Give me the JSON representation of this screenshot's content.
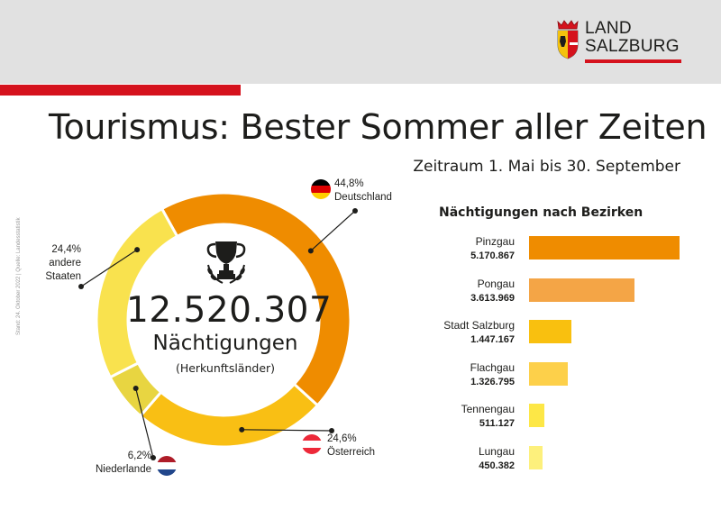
{
  "brand": {
    "line1": "LAND",
    "line2": "SALZBURG",
    "accent": "#d5121d"
  },
  "title": "Tourismus: Bester Sommer aller Zeiten",
  "subtitle": "Zeitraum 1. Mai bis 30. September",
  "source": "Stand: 24. Oktober 2022 | Quelle: Landesstatistik",
  "chart_data": [
    {
      "type": "pie",
      "title": "",
      "center": {
        "total": "12.520.307",
        "unit": "Nächtigungen",
        "note": "(Herkunftsländer)"
      },
      "slices": [
        {
          "label": "Deutschland",
          "percent_text": "44,8%",
          "value": 44.8,
          "color": "#ef8c00"
        },
        {
          "label": "Österreich",
          "percent_text": "24,6%",
          "value": 24.6,
          "color": "#f9bf14"
        },
        {
          "label": "Niederlande",
          "percent_text": "6,2%",
          "value": 6.2,
          "color": "#e8d541"
        },
        {
          "label_lines": [
            "andere",
            "Staaten"
          ],
          "percent_text": "24,4%",
          "value": 24.4,
          "color": "#f9e24e"
        }
      ]
    },
    {
      "type": "bar",
      "title": "Nächtigungen nach Bezirken",
      "categories": [
        "Pinzgau",
        "Pongau",
        "Stadt Salzburg",
        "Flachgau",
        "Tennengau",
        "Lungau"
      ],
      "values": [
        5170867,
        3613969,
        1447167,
        1326795,
        511127,
        450382
      ],
      "value_labels": [
        "5.170.867",
        "3.613.969",
        "1.447.167",
        "1.326.795",
        "511.127",
        "450.382"
      ],
      "colors": [
        "#ef8c00",
        "#f4a546",
        "#f9c00f",
        "#fdd04a",
        "#fde746",
        "#fdf07c"
      ]
    }
  ]
}
